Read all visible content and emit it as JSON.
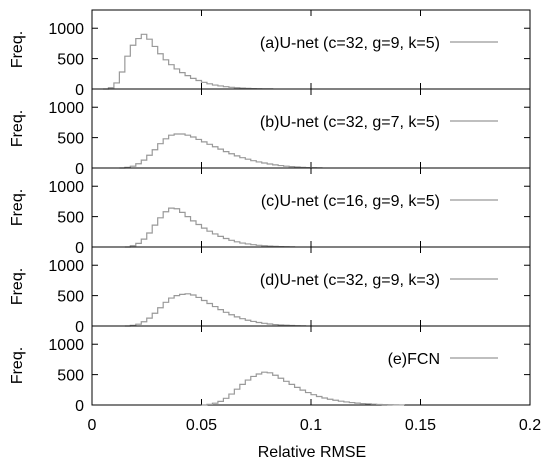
{
  "chart_data": [
    {
      "type": "histogram",
      "legend": "(a)U-net (c=32, g=9, k=5)",
      "legend_position": "top-right",
      "ylabel": "Freq.",
      "ylim": [
        0,
        1300
      ],
      "yticks": [
        "0",
        "500",
        "1000"
      ],
      "xlim": [
        0,
        0.2
      ],
      "bin_width": 0.0025,
      "bins_start": 0.005,
      "counts": [
        0,
        20,
        100,
        280,
        540,
        720,
        830,
        900,
        820,
        700,
        580,
        480,
        400,
        330,
        270,
        220,
        175,
        140,
        110,
        85,
        65,
        50,
        38,
        28,
        20,
        14,
        10,
        7,
        5,
        3,
        2
      ]
    },
    {
      "type": "histogram",
      "legend": "(b)U-net (c=32, g=7, k=5)",
      "legend_position": "top-right",
      "ylabel": "Freq.",
      "ylim": [
        0,
        1300
      ],
      "yticks": [
        "0",
        "500",
        "1000"
      ],
      "xlim": [
        0,
        0.2
      ],
      "bin_width": 0.0025,
      "bins_start": 0.0125,
      "counts": [
        0,
        10,
        30,
        70,
        130,
        210,
        300,
        400,
        480,
        540,
        560,
        560,
        540,
        510,
        470,
        430,
        390,
        350,
        310,
        270,
        235,
        200,
        170,
        145,
        120,
        100,
        82,
        66,
        52,
        40,
        30,
        22,
        16,
        11,
        7,
        4,
        2
      ]
    },
    {
      "type": "histogram",
      "legend": "(c)U-net (c=16, g=9, k=5)",
      "legend_position": "top-right",
      "ylabel": "Freq.",
      "ylim": [
        0,
        1300
      ],
      "yticks": [
        "0",
        "500",
        "1000"
      ],
      "xlim": [
        0,
        0.2
      ],
      "bin_width": 0.0025,
      "bins_start": 0.015,
      "counts": [
        0,
        20,
        60,
        130,
        230,
        360,
        480,
        580,
        640,
        630,
        570,
        500,
        430,
        370,
        310,
        260,
        215,
        175,
        140,
        110,
        85,
        65,
        50,
        38,
        28,
        20,
        14,
        10,
        6,
        4,
        2
      ]
    },
    {
      "type": "histogram",
      "legend": "(d)U-net (c=32, g=9, k=3)",
      "legend_position": "top-right",
      "ylabel": "Freq.",
      "ylim": [
        0,
        1300
      ],
      "yticks": [
        "0",
        "500",
        "1000"
      ],
      "xlim": [
        0,
        0.2
      ],
      "bin_width": 0.0025,
      "bins_start": 0.015,
      "counts": [
        0,
        10,
        30,
        70,
        130,
        210,
        300,
        390,
        460,
        500,
        520,
        530,
        510,
        470,
        420,
        370,
        320,
        270,
        225,
        185,
        150,
        120,
        95,
        75,
        58,
        44,
        33,
        24,
        17,
        12,
        8,
        5,
        3
      ]
    },
    {
      "type": "histogram",
      "legend": "(e)FCN",
      "legend_position": "top-right",
      "ylabel": "Freq.",
      "xlabel": "Relative RMSE",
      "ylim": [
        0,
        1300
      ],
      "yticks": [
        "0",
        "500",
        "1000"
      ],
      "xlim": [
        0,
        0.2
      ],
      "xticks": [
        "0",
        "0.05",
        "0.1",
        "0.15",
        "0.2"
      ],
      "bin_width": 0.0025,
      "bins_start": 0.05,
      "counts": [
        0,
        10,
        30,
        60,
        110,
        180,
        260,
        340,
        410,
        470,
        510,
        540,
        530,
        490,
        440,
        390,
        340,
        290,
        245,
        205,
        170,
        140,
        115,
        95,
        78,
        63,
        50,
        40,
        31,
        24,
        18,
        13,
        9,
        6,
        4,
        2,
        1
      ]
    }
  ]
}
